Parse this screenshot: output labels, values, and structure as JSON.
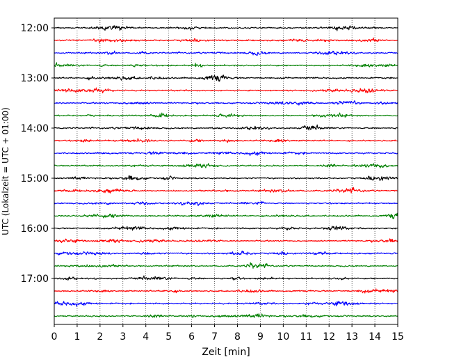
{
  "chart_data": {
    "type": "line",
    "title": "",
    "xlabel": "Zeit  [min]",
    "ylabel": "UTC (Lokalzeit = UTC + 01:00)",
    "xlim": [
      0,
      15
    ],
    "x_ticks": [
      "0",
      "1",
      "2",
      "3",
      "4",
      "5",
      "6",
      "7",
      "8",
      "9",
      "10",
      "11",
      "12",
      "13",
      "14",
      "15"
    ],
    "y_tick_labels": [
      "12:00",
      "13:00",
      "14:00",
      "15:00",
      "16:00",
      "17:00"
    ],
    "trace_start": "12:00",
    "trace_end": "17:45",
    "trace_interval_minutes": 15,
    "trace_colors": [
      "#000000",
      "#ff0000",
      "#0000ff",
      "#008000"
    ],
    "grid": "vertical dotted",
    "legend": "none"
  }
}
